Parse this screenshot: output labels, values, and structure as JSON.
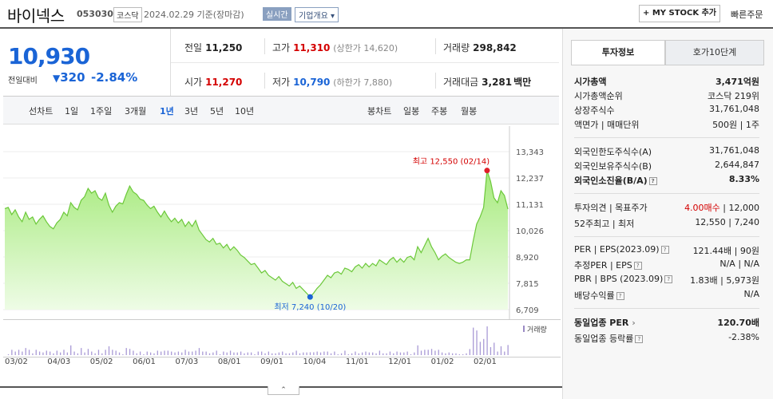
{
  "header": {
    "name": "바이넥스",
    "code": "053030",
    "market": "코스닥",
    "date": "2024.02.29",
    "basis": "기준(장마감)",
    "realtime": "실시간",
    "overview": "기업개요 ▾",
    "mystock": "+ MY STOCK 추가",
    "quick_order": "빠른주문"
  },
  "price": {
    "current": "10,930",
    "label": "전일대비",
    "change": "320",
    "change_pct": "-2.84%"
  },
  "stats": {
    "prev_label": "전일",
    "prev": "11,250",
    "open_label": "시가",
    "open": "11,270",
    "high_label": "고가",
    "high": "11,310",
    "upper_limit": "(상한가 14,620)",
    "low_label": "저가",
    "low": "10,790",
    "lower_limit": "(하한가 7,880)",
    "volume_label": "거래량",
    "volume": "298,842",
    "amount_label": "거래대금",
    "amount": "3,281",
    "amount_unit": "백만"
  },
  "periods": {
    "line_label": "선차트",
    "line": [
      "1일",
      "1주일",
      "3개월",
      "1년",
      "3년",
      "5년",
      "10년"
    ],
    "selected": "1년",
    "candle_label": "봉차트",
    "candle": [
      "일봉",
      "주봉",
      "월봉"
    ]
  },
  "chart_data": {
    "type": "area",
    "y_ticks": [
      "13,343",
      "12,237",
      "11,131",
      "10,026",
      "8,920",
      "7,815",
      "6,709"
    ],
    "ylim": [
      6709,
      13343
    ],
    "x_labels": [
      "03/02",
      "04/03",
      "05/02",
      "06/01",
      "07/03",
      "08/01",
      "09/01",
      "10/04",
      "11/01",
      "12/01",
      "01/02",
      "02/01"
    ],
    "high_label": "최고 12,550 (02/14)",
    "low_label": "최저 7,240 (10/20)",
    "volume_label": "거래량",
    "series": [
      {
        "values": [
          10950,
          11000,
          10700,
          10900,
          10600,
          10400,
          10800,
          10500,
          10600,
          10300,
          10500,
          10650,
          10400,
          10200,
          10100,
          10350,
          10500,
          10800,
          10650,
          11200,
          11000,
          10900,
          11300,
          11450,
          11800,
          11600,
          11700,
          11400,
          11300,
          11600,
          11100,
          10800,
          11050,
          11200,
          11150,
          11550,
          11900,
          11650,
          11550,
          11350,
          11300,
          11100,
          10950,
          11050,
          10800,
          10600,
          10850,
          10600,
          10400,
          10550,
          10350,
          10500,
          10200,
          10400,
          10200,
          10450,
          10050,
          9850,
          9650,
          9550,
          9700,
          9450,
          9500,
          9300,
          9450,
          9200,
          9350,
          9200,
          9000,
          8900,
          8750,
          8600,
          8650,
          8450,
          8250,
          8350,
          8150,
          8050,
          7950,
          8100,
          7900,
          7800,
          7700,
          7850,
          7600,
          7700,
          7550,
          7400,
          7240,
          7400,
          7600,
          7750,
          7950,
          8150,
          8050,
          8250,
          8300,
          8200,
          8450,
          8400,
          8300,
          8500,
          8600,
          8450,
          8650,
          8500,
          8650,
          8550,
          8800,
          8700,
          8600,
          8800,
          8900,
          8700,
          8850,
          8700,
          8900,
          8950,
          8800,
          9350,
          9100,
          9400,
          9700,
          9350,
          9100,
          8800,
          8950,
          9050,
          8900,
          8800,
          8700,
          8650,
          8700,
          8800,
          8800,
          9600,
          10300,
          10600,
          11000,
          12550,
          12100,
          11400,
          11200,
          11700,
          11500,
          10930
        ]
      }
    ]
  },
  "panel": {
    "tab_invest": "투자정보",
    "tab_hoga": "호가10단계",
    "rows1": [
      {
        "label": "시가총액",
        "value": "3,471억원"
      },
      {
        "label": "시가총액순위",
        "value": "코스닥 219위"
      },
      {
        "label": "상장주식수",
        "value": "31,761,048"
      },
      {
        "label": "액면가 | 매매단위",
        "value": "500원 | 1주"
      }
    ],
    "rows2": [
      {
        "label": "외국인한도주식수(A)",
        "value": "31,761,048"
      },
      {
        "label": "외국인보유주식수(B)",
        "value": "2,644,847"
      },
      {
        "label": "외국인소진율(B/A)",
        "value": "8.33%"
      }
    ],
    "opinion_label": "투자의견 | 목표주가",
    "opinion": "4.00매수",
    "target": "12,000",
    "w52_label": "52주최고 | 최저",
    "w52": "12,550 | 7,240",
    "per_label": "PER | EPS(2023.09)",
    "per": "121.44배 | 90원",
    "est_label": "추정PER | EPS",
    "est": "N/A | N/A",
    "pbr_label": "PBR | BPS (2023.09)",
    "pbr": "1.83배 | 5,973원",
    "div_label": "배당수익률",
    "div": "N/A",
    "ind_per_label": "동일업종 PER",
    "ind_per": "120.70배",
    "ind_chg_label": "동일업종 등락률",
    "ind_chg": "-2.38%"
  }
}
